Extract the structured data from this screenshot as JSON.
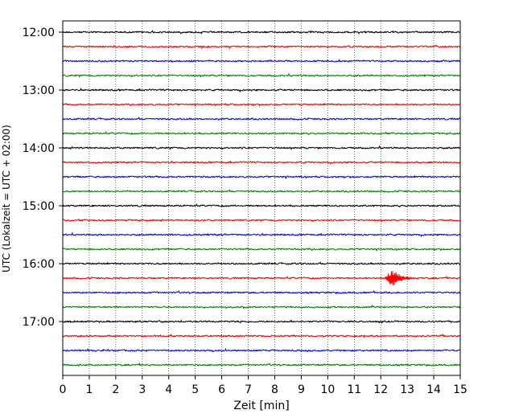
{
  "chart_data": {
    "type": "line",
    "title": "",
    "xlabel": "Zeit  [min]",
    "ylabel": "UTC (Lokalzeit = UTC + 02:00)",
    "xlim": [
      0,
      15
    ],
    "x_ticks": [
      "0",
      "1",
      "2",
      "3",
      "4",
      "5",
      "6",
      "7",
      "8",
      "9",
      "10",
      "11",
      "12",
      "13",
      "14",
      "15"
    ],
    "y_tick_labels": [
      {
        "label": "12:00",
        "row": 0
      },
      {
        "label": "13:00",
        "row": 4
      },
      {
        "label": "14:00",
        "row": 8
      },
      {
        "label": "15:00",
        "row": 12
      },
      {
        "label": "16:00",
        "row": 16
      },
      {
        "label": "17:00",
        "row": 20
      }
    ],
    "row_interval_minutes": 15,
    "row_count": 24,
    "row_colors": [
      "#000000",
      "#ff0000",
      "#0000ff",
      "#008000"
    ],
    "vertical_grid": "dotted at every minute",
    "events": [
      {
        "row": 17,
        "start_min": 12.15,
        "peak_min": 12.45,
        "end_min": 13.5,
        "description": "seismic event"
      }
    ]
  }
}
